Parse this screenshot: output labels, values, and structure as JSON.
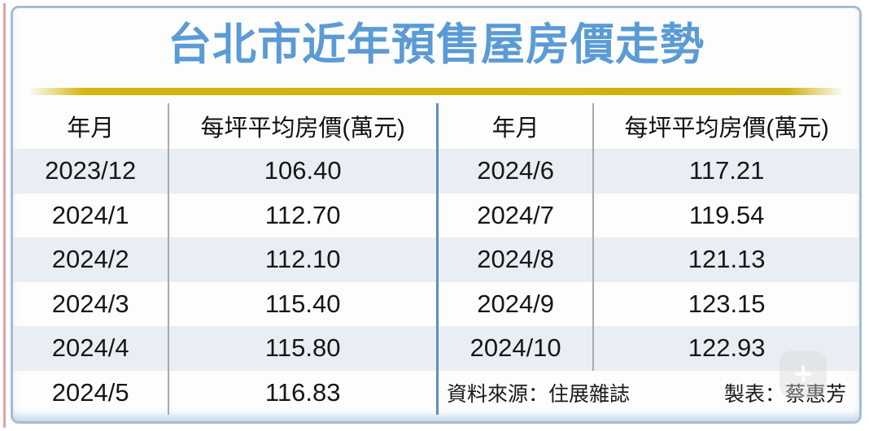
{
  "title": "台北市近年預售屋房價走勢",
  "tables": {
    "headers": [
      "年月",
      "每坪平均房價(萬元)"
    ],
    "left_rows": [
      [
        "2023/12",
        "106.40"
      ],
      [
        "2024/1",
        "112.70"
      ],
      [
        "2024/2",
        "112.10"
      ],
      [
        "2024/3",
        "115.40"
      ],
      [
        "2024/4",
        "115.80"
      ],
      [
        "2024/5",
        "116.83"
      ]
    ],
    "right_rows": [
      [
        "2024/6",
        "117.21"
      ],
      [
        "2024/7",
        "119.54"
      ],
      [
        "2024/8",
        "121.13"
      ],
      [
        "2024/9",
        "123.15"
      ],
      [
        "2024/10",
        "122.93"
      ]
    ]
  },
  "footer": {
    "source": "資料來源：住展雜誌",
    "credit": "製表：蔡惠芳"
  },
  "watermark": {
    "glyph": "+"
  },
  "colors": {
    "title_blue": "#5b9bd5",
    "gold_rule": "#d3b50b",
    "row_stripe": "#e9eef4",
    "frame_blue": "#a4bdd2",
    "center_rule_blue": "#5e8fbe",
    "column_rule_gray": "#a9a9a9",
    "left_accent_pink": "#dfa3a3"
  },
  "chart_data": {
    "type": "table",
    "title": "台北市近年預售屋房價走勢",
    "columns": [
      "年月",
      "每坪平均房價(萬元)"
    ],
    "rows": [
      [
        "2023/12",
        106.4
      ],
      [
        "2024/1",
        112.7
      ],
      [
        "2024/2",
        112.1
      ],
      [
        "2024/3",
        115.4
      ],
      [
        "2024/4",
        115.8
      ],
      [
        "2024/5",
        116.83
      ],
      [
        "2024/6",
        117.21
      ],
      [
        "2024/7",
        119.54
      ],
      [
        "2024/8",
        121.13
      ],
      [
        "2024/9",
        123.15
      ],
      [
        "2024/10",
        122.93
      ]
    ],
    "source": "資料來源：住展雜誌",
    "credit": "製表：蔡惠芳",
    "layout": "two-column split table, zebra striping, header row unshaded"
  }
}
